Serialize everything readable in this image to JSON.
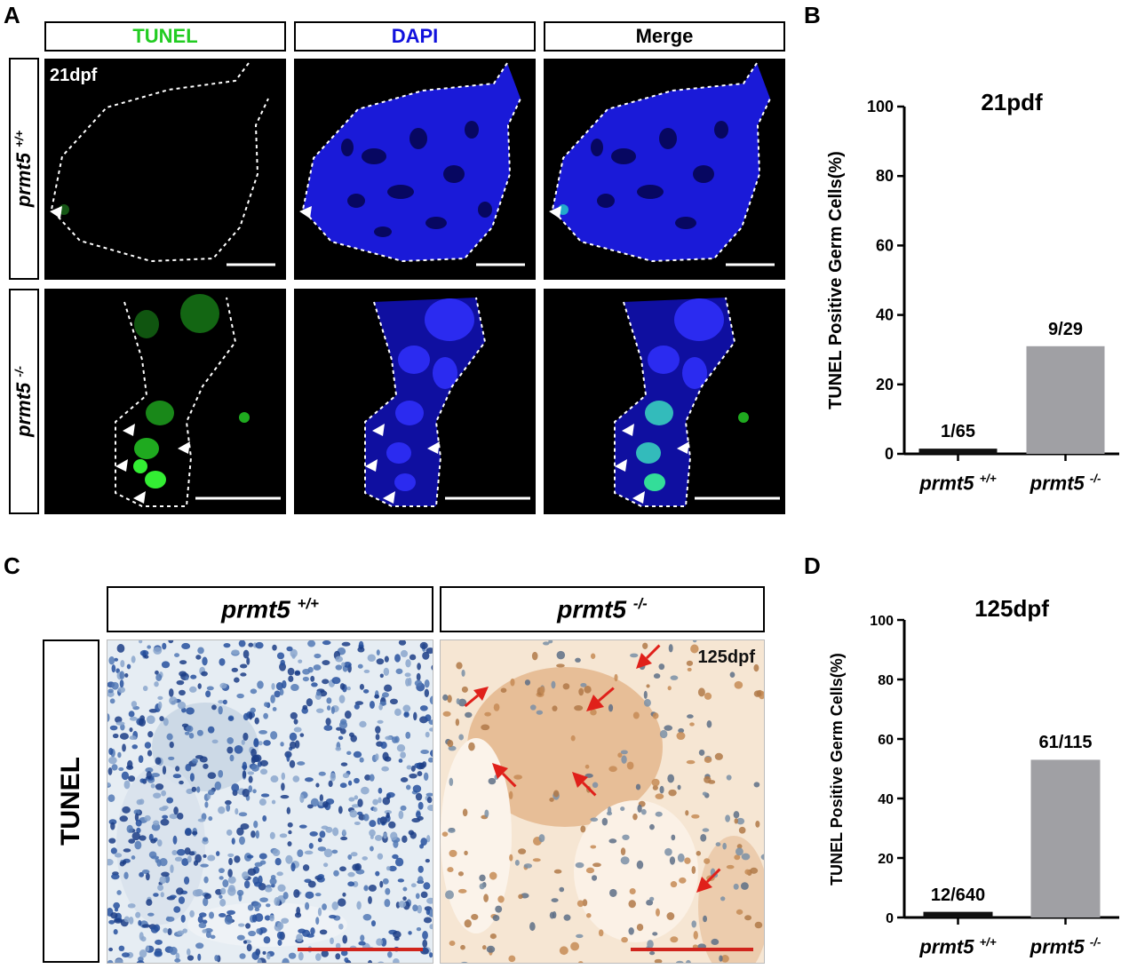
{
  "panels": {
    "A": "A",
    "B": "B",
    "C": "C",
    "D": "D"
  },
  "panel_a": {
    "columns": [
      "TUNEL",
      "DAPI",
      "Merge"
    ],
    "column_colors": [
      "#22cc22",
      "#1111dd",
      "#000000"
    ],
    "row_wt_gene": "prmt5",
    "row_wt_sup": "+/+",
    "row_ko_gene": "prmt5",
    "row_ko_sup": "-/-",
    "stage": "21dpf"
  },
  "panel_c": {
    "header_wt_gene": "prmt5",
    "header_wt_sup": "+/+",
    "header_ko_gene": "prmt5",
    "header_ko_sup": "-/-",
    "row_label": "TUNEL",
    "stage": "125dpf"
  },
  "chart_data": [
    {
      "type": "bar",
      "title": "21pdf",
      "ylabel": "TUNEL Positive Germ Cells(%)",
      "ylim": [
        0,
        100
      ],
      "yticks": [
        0,
        20,
        40,
        60,
        80,
        100
      ],
      "categories": [
        "prmt5",
        "prmt5"
      ],
      "category_sups": [
        "+/+",
        "-/-"
      ],
      "values": [
        1.5,
        31
      ],
      "bar_labels": [
        "1/65",
        "9/29"
      ],
      "bar_colors": [
        "#111111",
        "#a0a0a4"
      ]
    },
    {
      "type": "bar",
      "title": "125dpf",
      "ylabel": "TUNEL Positive Germ Cells(%)",
      "ylim": [
        0,
        100
      ],
      "yticks": [
        0,
        20,
        40,
        60,
        80,
        100
      ],
      "categories": [
        "prmt5",
        "prmt5"
      ],
      "category_sups": [
        "+/+",
        "-/-"
      ],
      "values": [
        1.9,
        53
      ],
      "bar_labels": [
        "12/640",
        "61/115"
      ],
      "bar_colors": [
        "#111111",
        "#a0a0a4"
      ]
    }
  ]
}
